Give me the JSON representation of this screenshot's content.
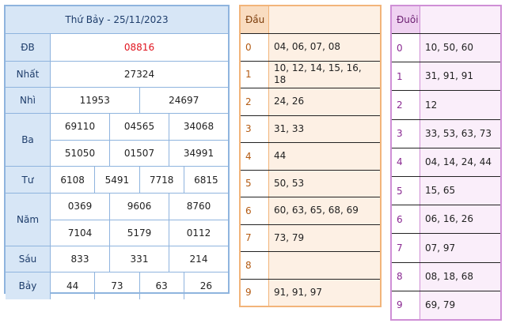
{
  "results": {
    "title": "Thứ Bảy - 25/11/2023",
    "prizes": [
      {
        "label": "ĐB",
        "rows": [
          [
            "08816"
          ]
        ]
      },
      {
        "label": "Nhất",
        "rows": [
          [
            "27324"
          ]
        ]
      },
      {
        "label": "Nhì",
        "rows": [
          [
            "11953",
            "24697"
          ]
        ]
      },
      {
        "label": "Ba",
        "rows": [
          [
            "69110",
            "04565",
            "34068"
          ],
          [
            "51050",
            "01507",
            "34991"
          ]
        ]
      },
      {
        "label": "Tư",
        "rows": [
          [
            "6108",
            "5491",
            "7718",
            "6815"
          ]
        ]
      },
      {
        "label": "Năm",
        "rows": [
          [
            "0369",
            "9606",
            "8760"
          ],
          [
            "7104",
            "5179",
            "0112"
          ]
        ]
      },
      {
        "label": "Sáu",
        "rows": [
          [
            "833",
            "331",
            "214"
          ]
        ]
      },
      {
        "label": "Bảy",
        "rows": [
          [
            "44",
            "73",
            "63",
            "26"
          ]
        ]
      }
    ],
    "special_color": "#e0141e"
  },
  "dau": {
    "header": "Đầu",
    "rows": [
      {
        "k": "0",
        "v": "04, 06, 07, 08"
      },
      {
        "k": "1",
        "v": "10, 12, 14, 15, 16, 18"
      },
      {
        "k": "2",
        "v": "24, 26"
      },
      {
        "k": "3",
        "v": "31, 33"
      },
      {
        "k": "4",
        "v": "44"
      },
      {
        "k": "5",
        "v": "50, 53"
      },
      {
        "k": "6",
        "v": "60, 63, 65, 68, 69"
      },
      {
        "k": "7",
        "v": "73, 79"
      },
      {
        "k": "8",
        "v": ""
      },
      {
        "k": "9",
        "v": "91, 91, 97"
      }
    ]
  },
  "duoi": {
    "header": "Đuôi",
    "rows": [
      {
        "k": "0",
        "v": "10, 50, 60"
      },
      {
        "k": "1",
        "v": "31, 91, 91"
      },
      {
        "k": "2",
        "v": "12"
      },
      {
        "k": "3",
        "v": "33, 53, 63, 73"
      },
      {
        "k": "4",
        "v": "04, 14, 24, 44"
      },
      {
        "k": "5",
        "v": "15, 65"
      },
      {
        "k": "6",
        "v": "06, 16, 26"
      },
      {
        "k": "7",
        "v": "07, 97"
      },
      {
        "k": "8",
        "v": "08, 18, 68"
      },
      {
        "k": "9",
        "v": "69, 79"
      }
    ]
  }
}
